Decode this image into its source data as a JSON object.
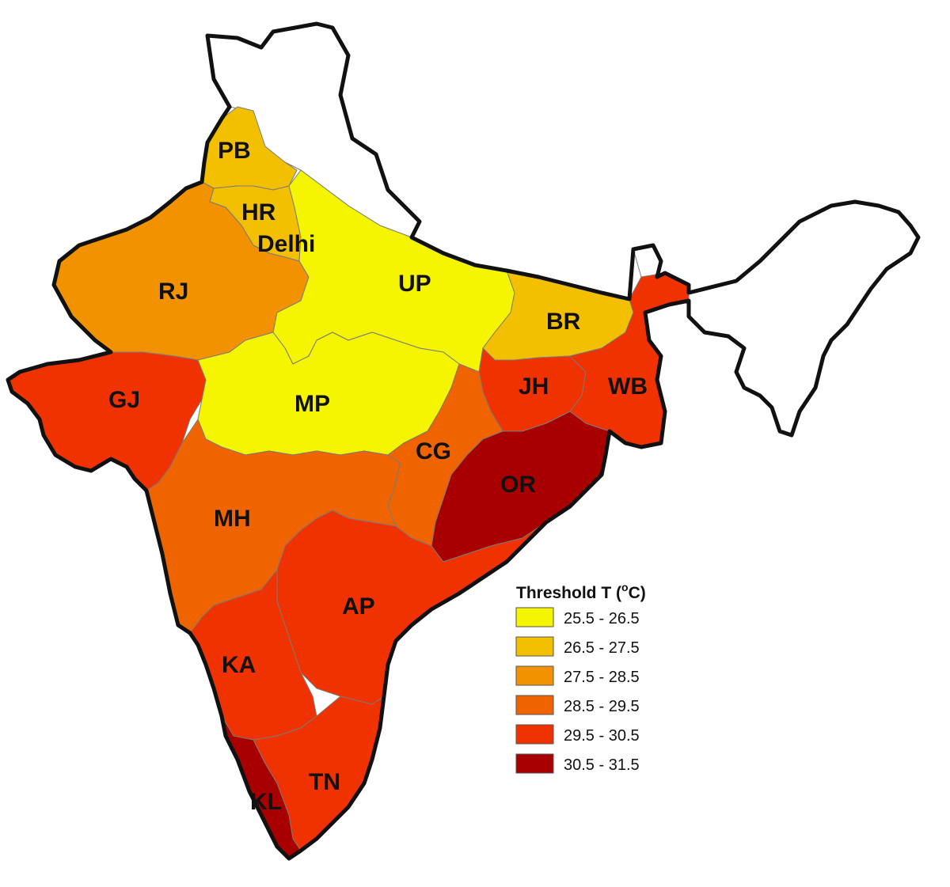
{
  "map": {
    "legend": {
      "title": "Threshold T (",
      "title_sup": "o",
      "title_end": "C)",
      "items": [
        {
          "label": "25.5 - 26.5",
          "color": "#f5f500"
        },
        {
          "label": "26.5 - 27.5",
          "color": "#f2c000"
        },
        {
          "label": "27.5 - 28.5",
          "color": "#f29200"
        },
        {
          "label": "28.5 - 29.5",
          "color": "#f06400"
        },
        {
          "label": "29.5 - 30.5",
          "color": "#f03200"
        },
        {
          "label": "30.5 - 31.5",
          "color": "#a80000"
        }
      ]
    },
    "regions": [
      {
        "id": "PB",
        "label": "PB",
        "class": "26.5 - 27.5"
      },
      {
        "id": "HR",
        "label": "HR",
        "class": "26.5 - 27.5"
      },
      {
        "id": "Delhi",
        "label": "Delhi",
        "class": "26.5 - 27.5"
      },
      {
        "id": "RJ",
        "label": "RJ",
        "class": "27.5 - 28.5"
      },
      {
        "id": "UP",
        "label": "UP",
        "class": "25.5 - 26.5"
      },
      {
        "id": "BR",
        "label": "BR",
        "class": "26.5 - 27.5"
      },
      {
        "id": "GJ",
        "label": "GJ",
        "class": "29.5 - 30.5"
      },
      {
        "id": "MP",
        "label": "MP",
        "class": "25.5 - 26.5"
      },
      {
        "id": "JH",
        "label": "JH",
        "class": "29.5 - 30.5"
      },
      {
        "id": "WB",
        "label": "WB",
        "class": "29.5 - 30.5"
      },
      {
        "id": "CG",
        "label": "CG",
        "class": "28.5 - 29.5"
      },
      {
        "id": "OR",
        "label": "OR",
        "class": "30.5 - 31.5"
      },
      {
        "id": "MH",
        "label": "MH",
        "class": "28.5 - 29.5"
      },
      {
        "id": "AP",
        "label": "AP",
        "class": "29.5 - 30.5"
      },
      {
        "id": "KA",
        "label": "KA",
        "class": "29.5 - 30.5"
      },
      {
        "id": "TN",
        "label": "TN",
        "class": "29.5 - 30.5"
      },
      {
        "id": "KL",
        "label": "KL",
        "class": "30.5 - 31.5"
      }
    ]
  }
}
